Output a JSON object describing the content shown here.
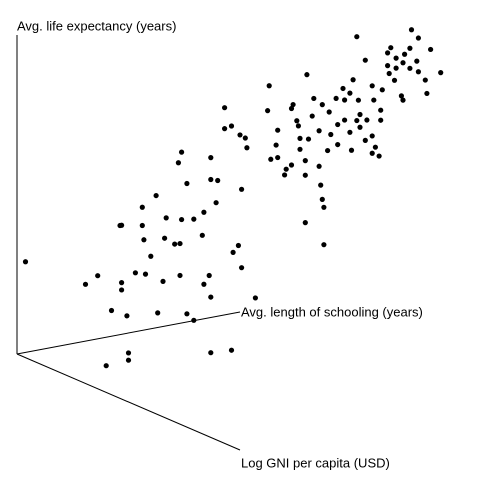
{
  "chart_data": {
    "type": "scatter3d",
    "xlabel": "Avg. length of schooling (years)",
    "ylabel": "Log GNI per capita (USD)",
    "zlabel": "Avg. life expectancy (years)",
    "xlim": [
      0,
      14
    ],
    "ylim": [
      6,
      12
    ],
    "zlim": [
      45,
      80
    ],
    "color": "#000000",
    "x": [
      2.8,
      3.5,
      3.5,
      6.1,
      6.7,
      5.5,
      0.3,
      2.2,
      2.5,
      2.9,
      3.3,
      3.3,
      3.4,
      3.7,
      4.1,
      4.4,
      4.5,
      5.1,
      5.3,
      5.9,
      6.1,
      7.1,
      7.5,
      6.0,
      3.2,
      3.3,
      3.9,
      3.9,
      4.0,
      4.2,
      4.3,
      4.6,
      4.7,
      5.0,
      5.1,
      5.2,
      5.2,
      5.0,
      5.3,
      5.5,
      5.8,
      5.9,
      6.1,
      6.3,
      6.2,
      6.1,
      6.5,
      6.7,
      6.9,
      6.8,
      7.0,
      7.1,
      7.2,
      7.1,
      6.5,
      7.9,
      7.8,
      8.0,
      8.1,
      8.2,
      8.2,
      8.4,
      8.5,
      8.6,
      8.6,
      8.7,
      8.7,
      8.8,
      8.9,
      8.9,
      9.0,
      9.0,
      9.1,
      9.2,
      9.2,
      9.3,
      9.4,
      9.4,
      9.5,
      9.6,
      9.6,
      9.7,
      9.7,
      9.0,
      9.7,
      9.8,
      9.9,
      10.0,
      10.1,
      10.1,
      10.2,
      10.3,
      10.3,
      10.4,
      10.4,
      10.5,
      10.6,
      10.6,
      10.7,
      10.8,
      10.8,
      10.9,
      10.9,
      11.0,
      11.1,
      11.1,
      11.2,
      11.3,
      11.3,
      11.4,
      11.4,
      11.5,
      11.6,
      11.6,
      11.7,
      11.8,
      11.8,
      11.9,
      11.9,
      12.0,
      12.1,
      12.1,
      12.2,
      12.3,
      12.3,
      12.4,
      12.5,
      12.6,
      12.6,
      12.8,
      12.9,
      12.9,
      13.3,
      10.6,
      11.1
    ],
    "y": [
      7.2,
      7.5,
      7.5,
      8.6,
      8.9,
      8.4,
      6.1,
      6.9,
      7.1,
      7.3,
      7.4,
      7.4,
      7.5,
      7.6,
      7.7,
      7.9,
      8.0,
      8.2,
      8.3,
      8.5,
      8.6,
      9.0,
      9.2,
      8.6,
      7.4,
      7.4,
      7.7,
      7.7,
      7.7,
      7.8,
      7.9,
      8.0,
      8.0,
      8.1,
      8.2,
      8.2,
      8.2,
      8.2,
      8.3,
      8.4,
      8.5,
      8.5,
      8.6,
      8.7,
      8.7,
      8.6,
      8.8,
      8.9,
      9.0,
      8.9,
      9.0,
      9.1,
      9.1,
      9.0,
      8.8,
      9.4,
      9.4,
      9.4,
      9.5,
      9.5,
      9.5,
      9.6,
      9.6,
      9.7,
      9.7,
      9.7,
      9.8,
      9.8,
      9.8,
      9.8,
      9.9,
      9.9,
      9.9,
      9.9,
      10.0,
      10.0,
      10.1,
      10.1,
      10.1,
      10.1,
      10.1,
      10.1,
      10.1,
      9.9,
      10.2,
      10.2,
      10.2,
      10.3,
      10.3,
      10.3,
      10.4,
      10.4,
      10.4,
      10.5,
      10.5,
      10.5,
      10.5,
      10.6,
      10.6,
      10.6,
      10.6,
      10.7,
      10.7,
      10.7,
      10.8,
      10.8,
      10.8,
      10.8,
      10.9,
      10.9,
      10.9,
      10.9,
      11.0,
      11.0,
      11.0,
      11.0,
      11.1,
      11.1,
      11.1,
      11.2,
      11.2,
      11.2,
      11.2,
      11.3,
      11.3,
      11.3,
      11.4,
      11.4,
      11.4,
      11.5,
      11.5,
      11.6,
      11.7,
      10.6,
      10.8
    ],
    "z": [
      44.9,
      46.6,
      45.8,
      47.7,
      48.3,
      51.1,
      55.2,
      53.5,
      54.7,
      51.1,
      54.2,
      53.4,
      50.7,
      55.5,
      55.4,
      51.4,
      55.0,
      55.8,
      51.7,
      55.1,
      53.8,
      57.4,
      54.3,
      56.2,
      60.5,
      60.5,
      62.8,
      60.8,
      59.2,
      57.5,
      64.3,
      59.7,
      61.9,
      59.1,
      59.3,
      61.9,
      69.3,
      68.2,
      66.0,
      62.2,
      60.5,
      63.0,
      66.7,
      66.7,
      64.3,
      69.1,
      74.8,
      72.9,
      59.9,
      59.0,
      72.0,
      71.8,
      70.7,
      66.0,
      72.5,
      77.8,
      75.1,
      69.7,
      71.4,
      73.0,
      70.0,
      68.2,
      68.8,
      69.4,
      75.6,
      76.0,
      74.4,
      73.8,
      72.4,
      71.2,
      70.1,
      68.5,
      79.5,
      72.4,
      75.1,
      77.0,
      73.6,
      69.7,
      67.6,
      76.4,
      66.0,
      65.1,
      61.0,
      63.3,
      71.5,
      75.7,
      73.2,
      77.3,
      74.4,
      72.2,
      78.5,
      75.0,
      77.2,
      78.1,
      73.8,
      71.8,
      79.5,
      75.2,
      77.4,
      75.8,
      74.4,
      73.1,
      81.9,
      75.3,
      71.8,
      73.7,
      77.6,
      72.4,
      71.6,
      76.6,
      75.5,
      78.8,
      83.0,
      81.6,
      80.7,
      83.5,
      80.1,
      82.5,
      81.4,
      78.5,
      82.1,
      78.0,
      83.0,
      81.6,
      83.8,
      85.8,
      82.5,
      85.0,
      81.3,
      80.5,
      79.0,
      84.0,
      81.5,
      84.4,
      79.2
    ]
  }
}
